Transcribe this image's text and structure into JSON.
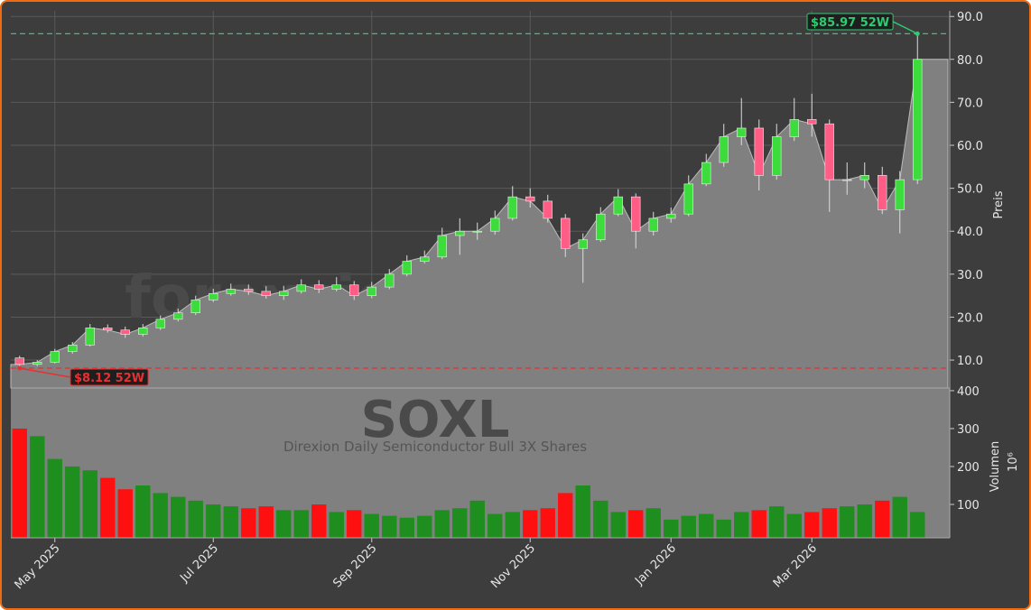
{
  "chart_data": {
    "type": "candlestick",
    "watermark": "forexsignale.trade",
    "symbol": "SOXL",
    "name": "Direxion Daily Semiconductor Bull 3X Shares",
    "categories": [
      null,
      null,
      "May 2025",
      null,
      null,
      null,
      null,
      null,
      null,
      null,
      null,
      "Jul 2025",
      null,
      null,
      null,
      null,
      null,
      null,
      null,
      null,
      "Sep 2025",
      null,
      null,
      null,
      null,
      null,
      null,
      null,
      null,
      "Nov 2025",
      null,
      null,
      null,
      null,
      null,
      null,
      null,
      "Jan 2026",
      null,
      null,
      null,
      null,
      null,
      null,
      null,
      "Mar 2026",
      null,
      null,
      null,
      null,
      null,
      null
    ],
    "open": [
      10.5,
      9.0,
      9.5,
      12,
      13.5,
      17.5,
      17.0,
      16.0,
      17.5,
      19.5,
      21,
      24,
      25.5,
      26.5,
      26,
      25,
      26,
      27.5,
      26.5,
      27.5,
      25,
      27,
      30,
      33,
      34,
      39,
      40,
      40,
      43,
      48,
      47,
      43,
      36,
      38,
      44,
      48,
      40,
      43,
      44,
      51,
      56,
      62,
      64,
      53,
      62,
      66,
      65,
      52,
      52,
      53,
      45,
      52
    ],
    "high": [
      11,
      10,
      12.6,
      14.2,
      18.4,
      18.3,
      17.8,
      18.4,
      20.4,
      22,
      25,
      26.6,
      27.8,
      27.6,
      27.2,
      27.3,
      28.8,
      28.6,
      29.3,
      28.4,
      28.2,
      31.2,
      34.4,
      35.5,
      40.8,
      43,
      42,
      44.8,
      50.5,
      50,
      48.5,
      44,
      39.5,
      45.6,
      49.8,
      48.8,
      44.5,
      45.5,
      53,
      58,
      65,
      71,
      66,
      65,
      71,
      72,
      66,
      56,
      56,
      55,
      54,
      85.97
    ],
    "low": [
      8.12,
      8.6,
      9.2,
      11.5,
      13.2,
      16.4,
      15.2,
      15.5,
      17,
      19,
      20.5,
      23.5,
      25,
      25.2,
      24.3,
      24,
      25.5,
      25.6,
      26,
      24,
      24.4,
      26.5,
      29.5,
      32.5,
      33.5,
      34.5,
      38,
      39.2,
      42.5,
      45.5,
      42,
      34,
      28,
      37.5,
      43.5,
      36,
      39,
      42,
      43.5,
      50.5,
      55,
      60,
      49.5,
      52,
      61,
      62,
      44.5,
      48.5,
      50,
      44,
      39.5,
      51
    ],
    "close": [
      9.0,
      9.5,
      12,
      13.5,
      17.5,
      17.0,
      16.0,
      17.5,
      19.5,
      21,
      24,
      25.5,
      26.5,
      26,
      25,
      26,
      27.5,
      26.5,
      27.5,
      25,
      27,
      30,
      33,
      34,
      39,
      40,
      40,
      43,
      48,
      47,
      43,
      36,
      38,
      44,
      48,
      40,
      43,
      44,
      51,
      56,
      62,
      64,
      53,
      62,
      66,
      65,
      52,
      52,
      53,
      45,
      52,
      80
    ],
    "volume": [
      300,
      280,
      220,
      200,
      190,
      170,
      140,
      150,
      130,
      120,
      110,
      100,
      95,
      90,
      95,
      85,
      85,
      100,
      80,
      85,
      75,
      70,
      65,
      70,
      85,
      90,
      110,
      75,
      80,
      85,
      90,
      130,
      150,
      110,
      80,
      85,
      90,
      60,
      70,
      75,
      60,
      80,
      85,
      95,
      75,
      80,
      90,
      95,
      100,
      110,
      120,
      80
    ],
    "ylim": [
      3.5,
      91.3
    ],
    "yticks": [
      {
        "value": 10,
        "label": "10.0"
      },
      {
        "value": 20,
        "label": "20.0"
      },
      {
        "value": 30,
        "label": "30.0"
      },
      {
        "value": 40,
        "label": "40.0"
      },
      {
        "value": 50,
        "label": "50.0"
      },
      {
        "value": 60,
        "label": "60.0"
      },
      {
        "value": 70,
        "label": "70.0"
      },
      {
        "value": 80,
        "label": "80.0"
      },
      {
        "value": 90,
        "label": "90.0"
      }
    ],
    "ylabel": "Preis",
    "volume_ylim": [
      12,
      407
    ],
    "volume_yticks": [
      100,
      200,
      300,
      400
    ],
    "volume_label": "Volumen",
    "volume_unit": "10⁶",
    "grid": true,
    "area_color": "#808080",
    "up_color": "#3ddc3d",
    "down_color": "#ff5c86",
    "volume_up_color": "#1e8f1e",
    "volume_down_color": "#ff1010",
    "annotations": [
      {
        "text": "$85.97 52W",
        "value": 85.97,
        "color": "#2ecc71"
      },
      {
        "text": "$8.12 52W",
        "value": 8.12,
        "color": "#e83030"
      }
    ]
  }
}
